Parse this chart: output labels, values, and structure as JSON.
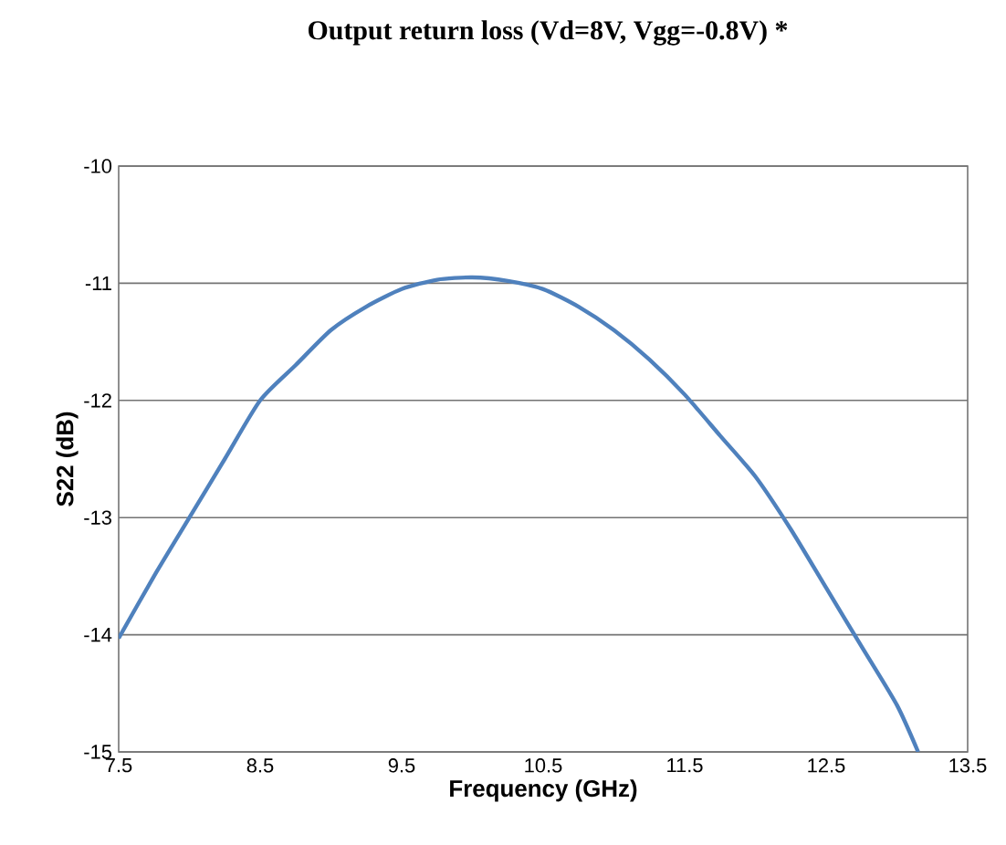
{
  "chart_data": {
    "type": "line",
    "title": "Output return loss (Vd=8V, Vgg=-0.8V)  *",
    "xlabel": "Frequency (GHz)",
    "ylabel": "S22 (dB)",
    "x": [
      7.5,
      7.75,
      8.0,
      8.25,
      8.5,
      8.75,
      9.0,
      9.25,
      9.5,
      9.75,
      10.0,
      10.25,
      10.5,
      10.75,
      11.0,
      11.25,
      11.5,
      11.75,
      12.0,
      12.25,
      12.5,
      12.75,
      13.0,
      13.15
    ],
    "series": [
      {
        "color": "#4f81bd",
        "values": [
          -14.03,
          -13.5,
          -13.0,
          -12.5,
          -12.0,
          -11.7,
          -11.4,
          -11.2,
          -11.05,
          -10.97,
          -10.95,
          -10.98,
          -11.05,
          -11.2,
          -11.4,
          -11.65,
          -11.95,
          -12.3,
          -12.65,
          -13.1,
          -13.6,
          -14.1,
          -14.6,
          -15.0
        ]
      }
    ],
    "xlim": [
      7.5,
      13.5
    ],
    "xticks": [
      7.5,
      8.5,
      9.5,
      10.5,
      11.5,
      12.5,
      13.5
    ],
    "ylim": [
      -15,
      -10
    ],
    "yticks": [
      -15,
      -14,
      -13,
      -12,
      -11,
      -10
    ],
    "grid": "y",
    "marker": "none",
    "line_style": "solid"
  }
}
